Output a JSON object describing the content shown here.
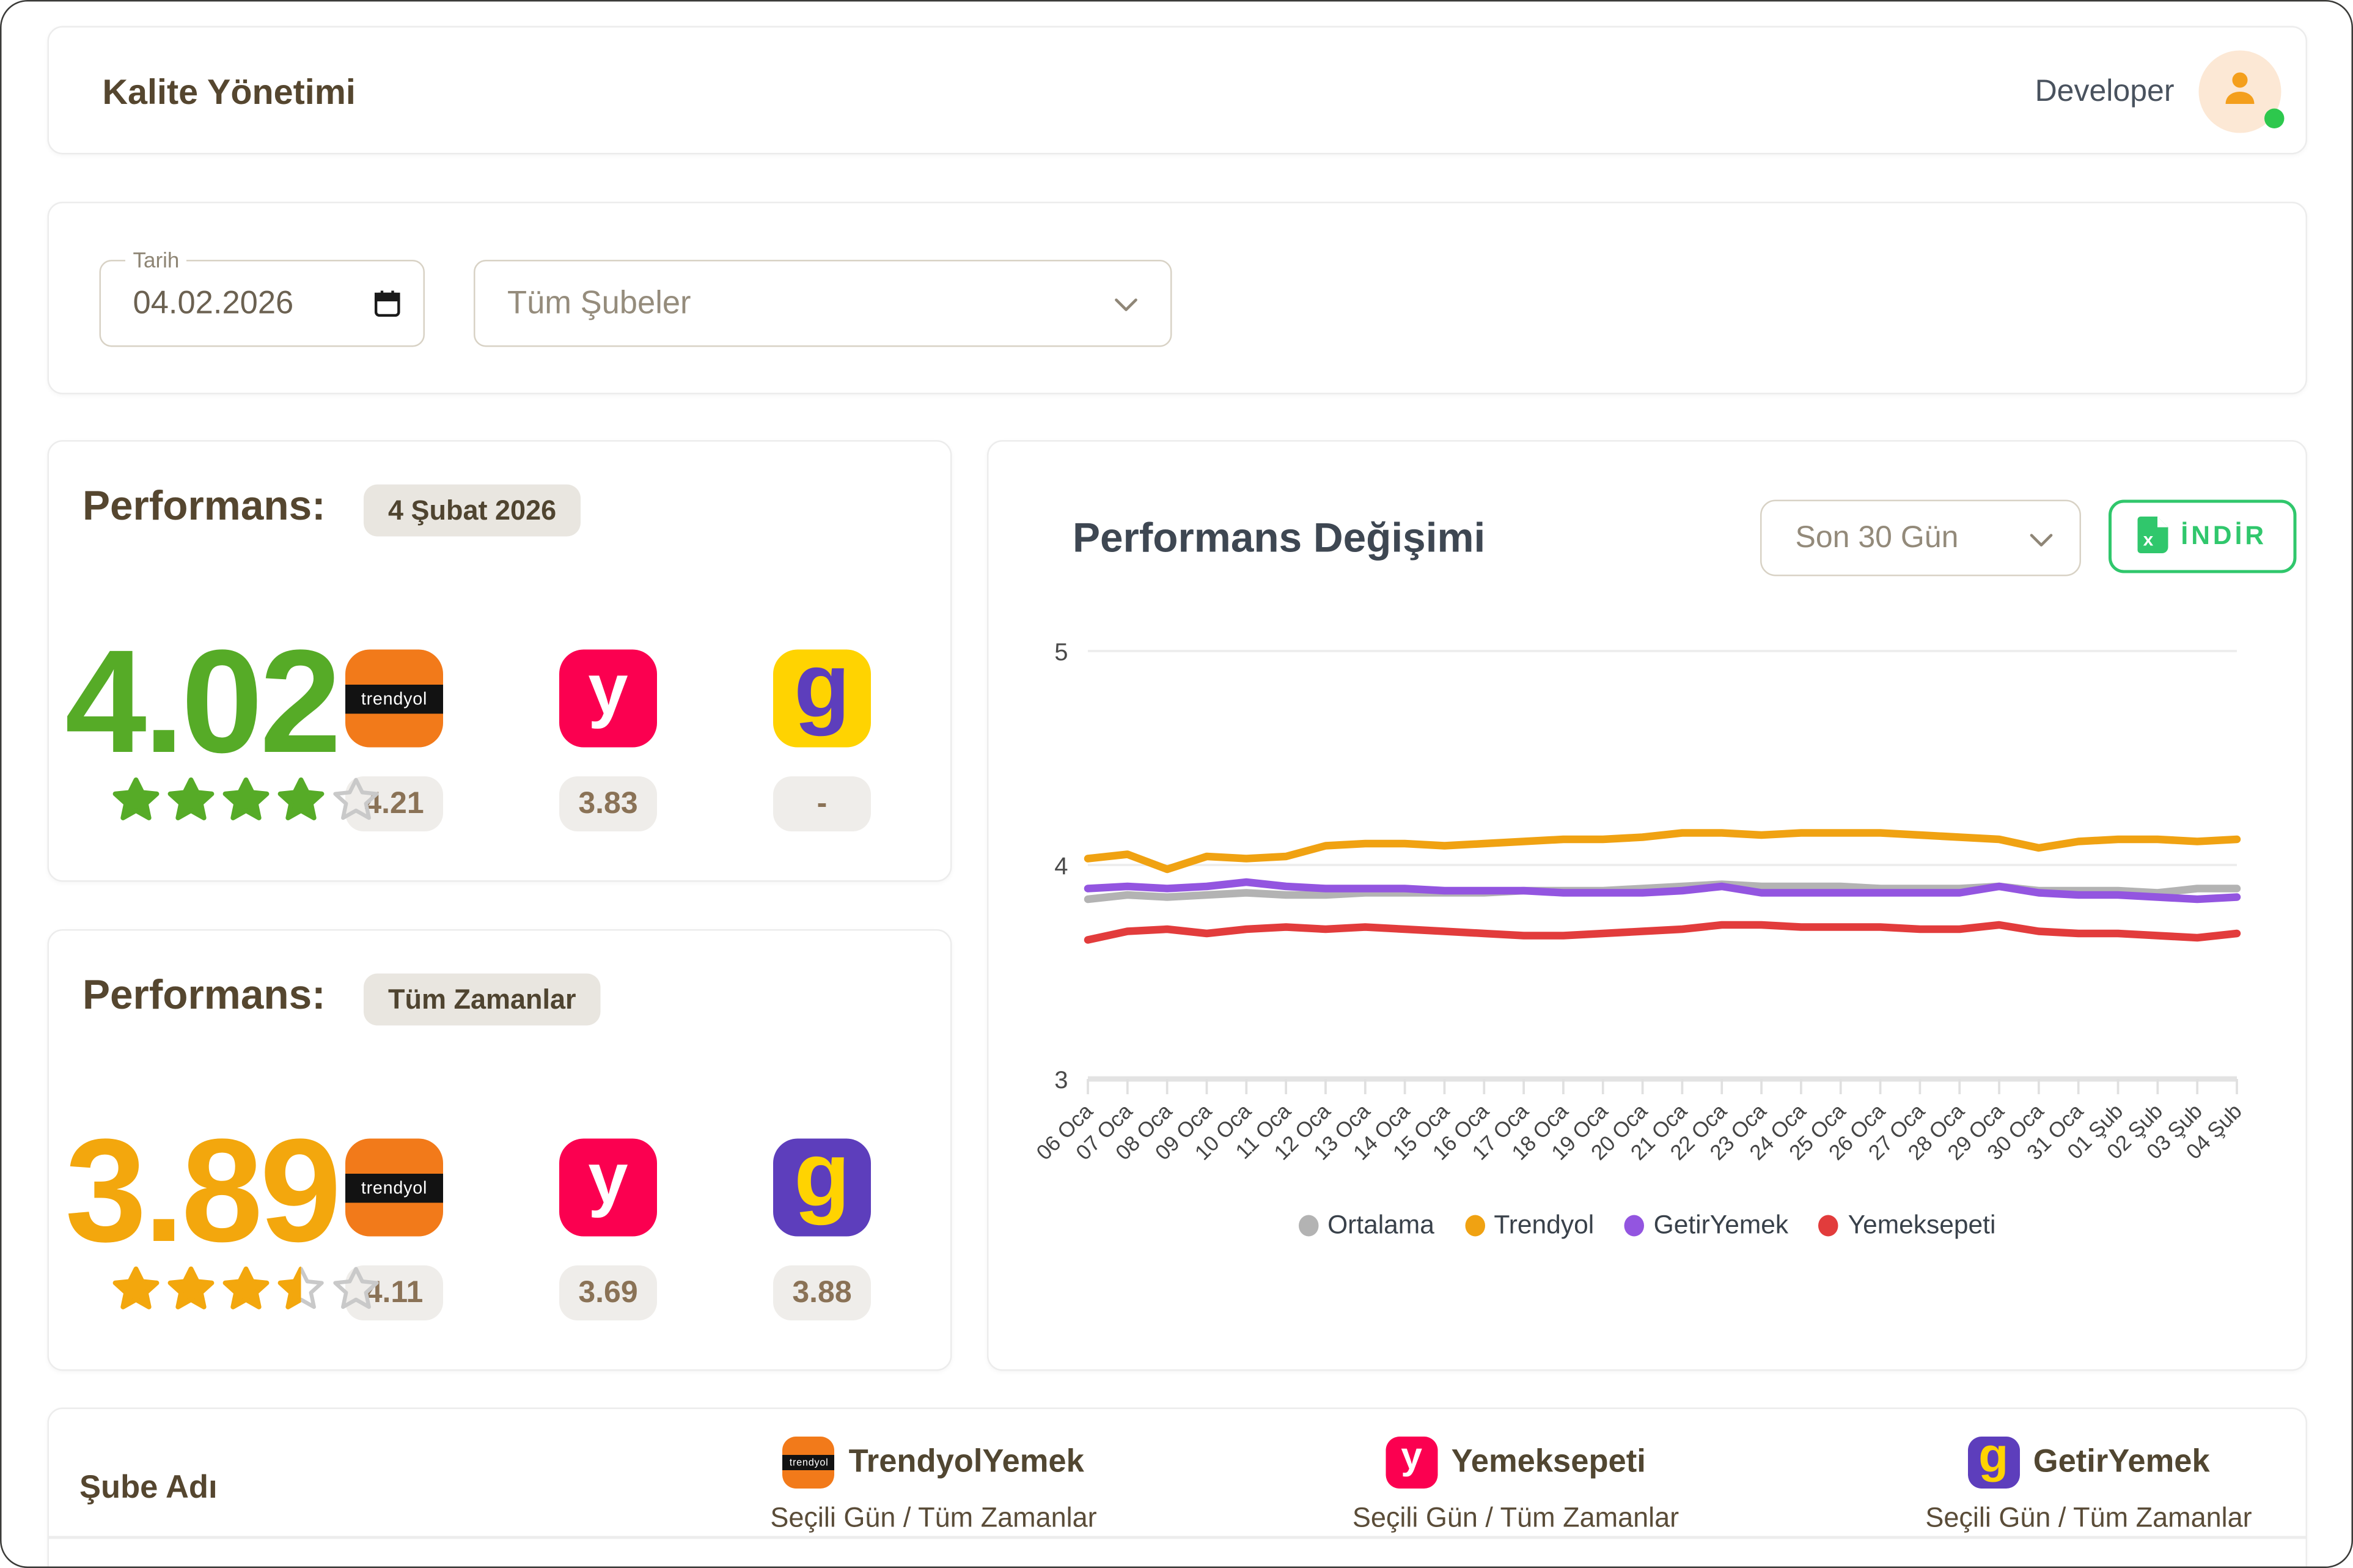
{
  "header": {
    "title": "Kalite Yönetimi",
    "user_label": "Developer",
    "user_status": "online"
  },
  "filters": {
    "date_label": "Tarih",
    "date_value": "04.02.2026",
    "branch_value": "Tüm Şubeler"
  },
  "brands": {
    "trendyol_text": "trendyol",
    "yemeksepeti_glyph": "y",
    "getir_glyph": "g"
  },
  "performance_cards": [
    {
      "title": "Performans:",
      "badge": "4 Şubat 2026",
      "score": "4.02",
      "score_color": "#56ab27",
      "star_color": "#56ab27",
      "stars": [
        "full",
        "full",
        "full",
        "full",
        "empty"
      ],
      "platforms": [
        {
          "name": "TrendyolYemek",
          "value": "4.21"
        },
        {
          "name": "Yemeksepeti",
          "value": "3.83"
        },
        {
          "name": "GetirYemek",
          "value": "-"
        }
      ]
    },
    {
      "title": "Performans:",
      "badge": "Tüm Zamanlar",
      "score": "3.89",
      "score_color": "#f3a70d",
      "star_color": "#f3a70d",
      "stars": [
        "full",
        "full",
        "full",
        "half",
        "empty"
      ],
      "platforms": [
        {
          "name": "TrendyolYemek",
          "value": "4.11"
        },
        {
          "name": "Yemeksepeti",
          "value": "3.69"
        },
        {
          "name": "GetirYemek",
          "value": "3.88"
        }
      ]
    }
  ],
  "chart_card": {
    "title": "Performans Değişimi",
    "range_select": "Son 30 Gün",
    "download_label": "İNDİR"
  },
  "chart_data": {
    "type": "line",
    "x": [
      "06 Oca",
      "07 Oca",
      "08 Oca",
      "09 Oca",
      "10 Oca",
      "11 Oca",
      "12 Oca",
      "13 Oca",
      "14 Oca",
      "15 Oca",
      "16 Oca",
      "17 Oca",
      "18 Oca",
      "19 Oca",
      "20 Oca",
      "21 Oca",
      "22 Oca",
      "23 Oca",
      "24 Oca",
      "25 Oca",
      "26 Oca",
      "27 Oca",
      "28 Oca",
      "29 Oca",
      "30 Oca",
      "31 Oca",
      "01 Şub",
      "02 Şub",
      "03 Şub",
      "04 Şub"
    ],
    "ylim": [
      3,
      5
    ],
    "yticks": [
      5,
      4,
      3
    ],
    "grid": "horizontal",
    "legend_position": "bottom",
    "series": [
      {
        "name": "Ortalama",
        "color": "#b3b3b3",
        "values": [
          3.84,
          3.86,
          3.85,
          3.86,
          3.87,
          3.86,
          3.86,
          3.87,
          3.87,
          3.87,
          3.87,
          3.88,
          3.88,
          3.88,
          3.89,
          3.9,
          3.91,
          3.9,
          3.9,
          3.9,
          3.89,
          3.89,
          3.89,
          3.9,
          3.88,
          3.88,
          3.88,
          3.87,
          3.89,
          3.89
        ]
      },
      {
        "name": "Trendyol",
        "color": "#f0a212",
        "values": [
          4.03,
          4.05,
          3.98,
          4.04,
          4.03,
          4.04,
          4.09,
          4.1,
          4.1,
          4.09,
          4.1,
          4.11,
          4.12,
          4.12,
          4.13,
          4.15,
          4.15,
          4.14,
          4.15,
          4.15,
          4.15,
          4.14,
          4.13,
          4.12,
          4.08,
          4.11,
          4.12,
          4.12,
          4.11,
          4.12
        ]
      },
      {
        "name": "GetirYemek",
        "color": "#9355e0",
        "values": [
          3.89,
          3.9,
          3.89,
          3.9,
          3.92,
          3.9,
          3.89,
          3.89,
          3.89,
          3.88,
          3.88,
          3.88,
          3.87,
          3.87,
          3.87,
          3.88,
          3.9,
          3.87,
          3.87,
          3.87,
          3.87,
          3.87,
          3.87,
          3.9,
          3.87,
          3.86,
          3.86,
          3.85,
          3.84,
          3.85
        ]
      },
      {
        "name": "Yemeksepeti",
        "color": "#e23c3c",
        "values": [
          3.65,
          3.69,
          3.7,
          3.68,
          3.7,
          3.71,
          3.7,
          3.71,
          3.7,
          3.69,
          3.68,
          3.67,
          3.67,
          3.68,
          3.69,
          3.7,
          3.72,
          3.72,
          3.71,
          3.71,
          3.71,
          3.7,
          3.7,
          3.72,
          3.69,
          3.68,
          3.68,
          3.67,
          3.66,
          3.68
        ]
      }
    ]
  },
  "table": {
    "first_column": "Şube Adı",
    "subtitle": "Seçili Gün / Tüm Zamanlar",
    "columns": [
      {
        "icon": "trendyol-logo",
        "name": "TrendyolYemek",
        "subtitle": "Seçili Gün / Tüm Zamanlar"
      },
      {
        "icon": "yemeksepeti-logo",
        "name": "Yemeksepeti",
        "subtitle": "Seçili Gün / Tüm Zamanlar"
      },
      {
        "icon": "getiryemek-logo",
        "name": "GetirYemek",
        "subtitle": "Seçili Gün / Tüm Zamanlar"
      }
    ]
  },
  "icons": {
    "user": "person-icon",
    "user_status": "online-status-dot",
    "date_picker": "calendar-icon",
    "select_arrow": "chevron-down-icon",
    "download": "excel-file-icon"
  },
  "colors": {
    "title_brown": "#55462f",
    "muted_brown": "#8e8574",
    "green_score": "#56ab27",
    "amber_score": "#f3a70d",
    "empty_star": "#c9c9c9",
    "badge_bg": "#e9e6e0",
    "value_badge_bg": "#efedea",
    "value_badge_text": "#8a7256",
    "download_green": "#30c76c",
    "trendyol_orange": "#f27a1a",
    "yemeksepeti_pink": "#fb0050",
    "getir_purple": "#5d3ebc",
    "getir_yellow": "#ffd301",
    "avatar_bg": "#fce8d5",
    "avatar_icon_orange": "#f49f1c",
    "online_green": "#2dc84d"
  }
}
